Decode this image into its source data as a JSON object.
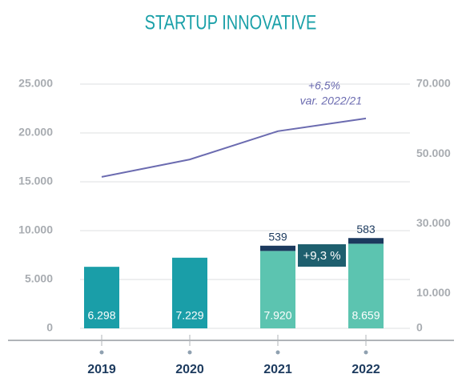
{
  "chart_data": {
    "type": "bar_line",
    "title": "STARTUP INNOVATIVE",
    "categories": [
      "2019",
      "2020",
      "2021",
      "2022"
    ],
    "series": [
      {
        "values": [
          6298,
          7229,
          7920,
          8659
        ],
        "value_labels": [
          "6.298",
          "7.229",
          "7.920",
          "8.659"
        ],
        "colors": [
          "#1a9ea8",
          "#1a9ea8",
          "#5cc4b0",
          "#5cc4b0"
        ]
      },
      {
        "values": [
          null,
          null,
          539,
          583
        ],
        "color": "#1c3a5e"
      },
      {
        "values": [
          43400,
          48400,
          56500,
          60150
        ],
        "color": "#6b6bb0",
        "axis": "y2"
      }
    ],
    "ylim": [
      0,
      25000
    ],
    "yticks": [
      {
        "value": 0,
        "label": "0"
      },
      {
        "value": 5000,
        "label": "5.000"
      },
      {
        "value": 10000,
        "label": "10.000"
      },
      {
        "value": 15000,
        "label": "15.000"
      },
      {
        "value": 20000,
        "label": "20.000"
      },
      {
        "value": 25000,
        "label": "25.000"
      }
    ],
    "y2lim": [
      0,
      70000
    ],
    "y2ticks": [
      {
        "value": 0,
        "label": "0"
      },
      {
        "value": 10000,
        "label": "10.000"
      },
      {
        "value": 30000,
        "label": "30.000"
      },
      {
        "value": 50000,
        "label": "50.000"
      },
      {
        "value": 70000,
        "label": "70.000"
      }
    ],
    "grid": true,
    "annotations": [
      "+6,5%",
      "var. 2022/21",
      "+9,3 %"
    ]
  }
}
